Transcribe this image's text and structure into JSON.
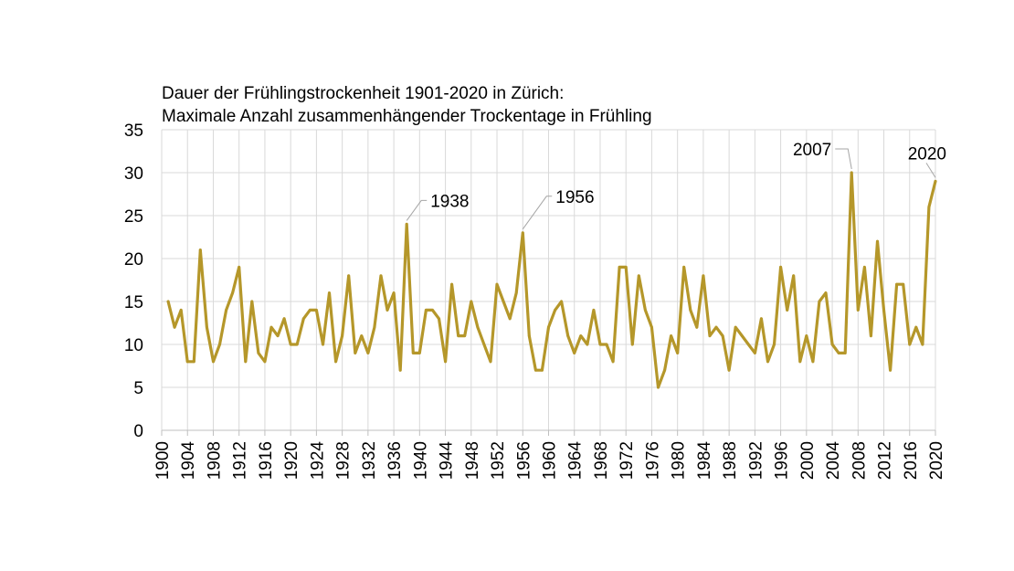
{
  "chart_data": {
    "type": "line",
    "title": "Dauer der Frühlingstrockenheit 1901-2020 in Zürich:",
    "subtitle": "Maximale Anzahl zusammenhängender Trockentage in Frühling",
    "xlabel": "",
    "ylabel": "",
    "xlim": [
      1900,
      2020
    ],
    "ylim": [
      0,
      35
    ],
    "yticks": [
      0,
      5,
      10,
      15,
      20,
      25,
      30,
      35
    ],
    "xticks": [
      1900,
      1904,
      1908,
      1912,
      1916,
      1920,
      1924,
      1928,
      1932,
      1936,
      1940,
      1944,
      1948,
      1952,
      1956,
      1960,
      1964,
      1968,
      1972,
      1976,
      1980,
      1984,
      1988,
      1992,
      1996,
      2000,
      2004,
      2008,
      2012,
      2016,
      2020
    ],
    "grid": true,
    "legend": "none",
    "series": [
      {
        "color": "#b5972a",
        "x": [
          1901,
          1902,
          1903,
          1904,
          1905,
          1906,
          1907,
          1908,
          1909,
          1910,
          1911,
          1912,
          1913,
          1914,
          1915,
          1916,
          1917,
          1918,
          1919,
          1920,
          1921,
          1922,
          1923,
          1924,
          1925,
          1926,
          1927,
          1928,
          1929,
          1930,
          1931,
          1932,
          1933,
          1934,
          1935,
          1936,
          1937,
          1938,
          1939,
          1940,
          1941,
          1942,
          1943,
          1944,
          1945,
          1946,
          1947,
          1948,
          1949,
          1950,
          1951,
          1952,
          1953,
          1954,
          1955,
          1956,
          1957,
          1958,
          1959,
          1960,
          1961,
          1962,
          1963,
          1964,
          1965,
          1966,
          1967,
          1968,
          1969,
          1970,
          1971,
          1972,
          1973,
          1974,
          1975,
          1976,
          1977,
          1978,
          1979,
          1980,
          1981,
          1982,
          1983,
          1984,
          1985,
          1986,
          1987,
          1988,
          1989,
          1990,
          1991,
          1992,
          1993,
          1994,
          1995,
          1996,
          1997,
          1998,
          1999,
          2000,
          2001,
          2002,
          2003,
          2004,
          2005,
          2006,
          2007,
          2008,
          2009,
          2010,
          2011,
          2012,
          2013,
          2014,
          2015,
          2016,
          2017,
          2018,
          2019,
          2020
        ],
        "values": [
          15,
          12,
          14,
          8,
          8,
          21,
          12,
          8,
          10,
          14,
          16,
          19,
          8,
          15,
          9,
          8,
          12,
          11,
          13,
          10,
          10,
          13,
          14,
          14,
          10,
          16,
          8,
          11,
          18,
          9,
          11,
          9,
          12,
          18,
          14,
          16,
          7,
          24,
          9,
          9,
          14,
          14,
          13,
          8,
          17,
          11,
          11,
          15,
          12,
          10,
          8,
          17,
          15,
          13,
          16,
          23,
          11,
          7,
          7,
          12,
          14,
          15,
          11,
          9,
          11,
          10,
          14,
          10,
          10,
          8,
          19,
          19,
          10,
          18,
          14,
          12,
          5,
          7,
          11,
          9,
          19,
          14,
          12,
          18,
          11,
          12,
          11,
          7,
          12,
          11,
          10,
          9,
          13,
          8,
          10,
          19,
          14,
          18,
          8,
          11,
          8,
          15,
          16,
          10,
          9,
          9,
          30,
          14,
          19,
          11,
          22,
          14,
          7,
          17,
          17,
          10,
          12,
          10,
          26,
          29
        ]
      }
    ],
    "annotations": [
      {
        "label": "1938",
        "x": 1938,
        "y": 24
      },
      {
        "label": "1956",
        "x": 1956,
        "y": 23
      },
      {
        "label": "2007",
        "x": 2007,
        "y": 30
      },
      {
        "label": "2020",
        "x": 2020,
        "y": 29
      }
    ]
  }
}
